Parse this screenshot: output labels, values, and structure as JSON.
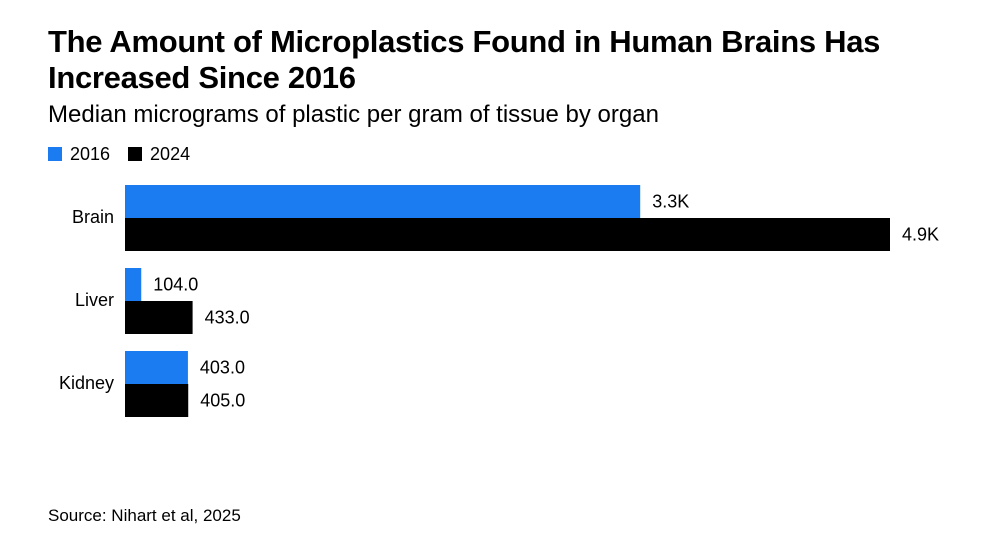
{
  "title": "The Amount of Microplastics Found in Human Brains Has Increased Since 2016",
  "subtitle": "Median micrograms of plastic per gram of tissue by organ",
  "source": "Source: Nihart et al, 2025",
  "chart_data": {
    "type": "bar",
    "orientation": "horizontal",
    "categories": [
      "Brain",
      "Liver",
      "Kidney"
    ],
    "series": [
      {
        "name": "2016",
        "color": "#1a7cf0",
        "values": [
          3300,
          104.0,
          403.0
        ],
        "labels": [
          "3.3K",
          "104.0",
          "403.0"
        ]
      },
      {
        "name": "2024",
        "color": "#000000",
        "values": [
          4900,
          433.0,
          405.0
        ],
        "labels": [
          "4.9K",
          "433.0",
          "405.0"
        ]
      }
    ],
    "legend_position": "top-left",
    "grid": false,
    "xlim": [
      0,
      4900
    ]
  }
}
